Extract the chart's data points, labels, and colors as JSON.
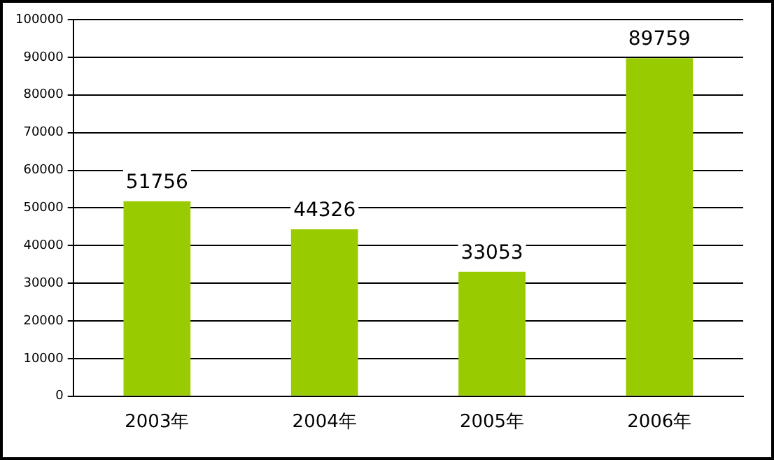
{
  "chart_data": {
    "type": "bar",
    "categories": [
      "2003年",
      "2004年",
      "2005年",
      "2006年"
    ],
    "values": [
      51756,
      44326,
      33053,
      89759
    ],
    "color": "#99cc00",
    "ylim": [
      0,
      100000
    ],
    "yticks": [
      0,
      10000,
      20000,
      30000,
      40000,
      50000,
      60000,
      70000,
      80000,
      90000,
      100000
    ],
    "grid": "y",
    "data_labels": true
  }
}
